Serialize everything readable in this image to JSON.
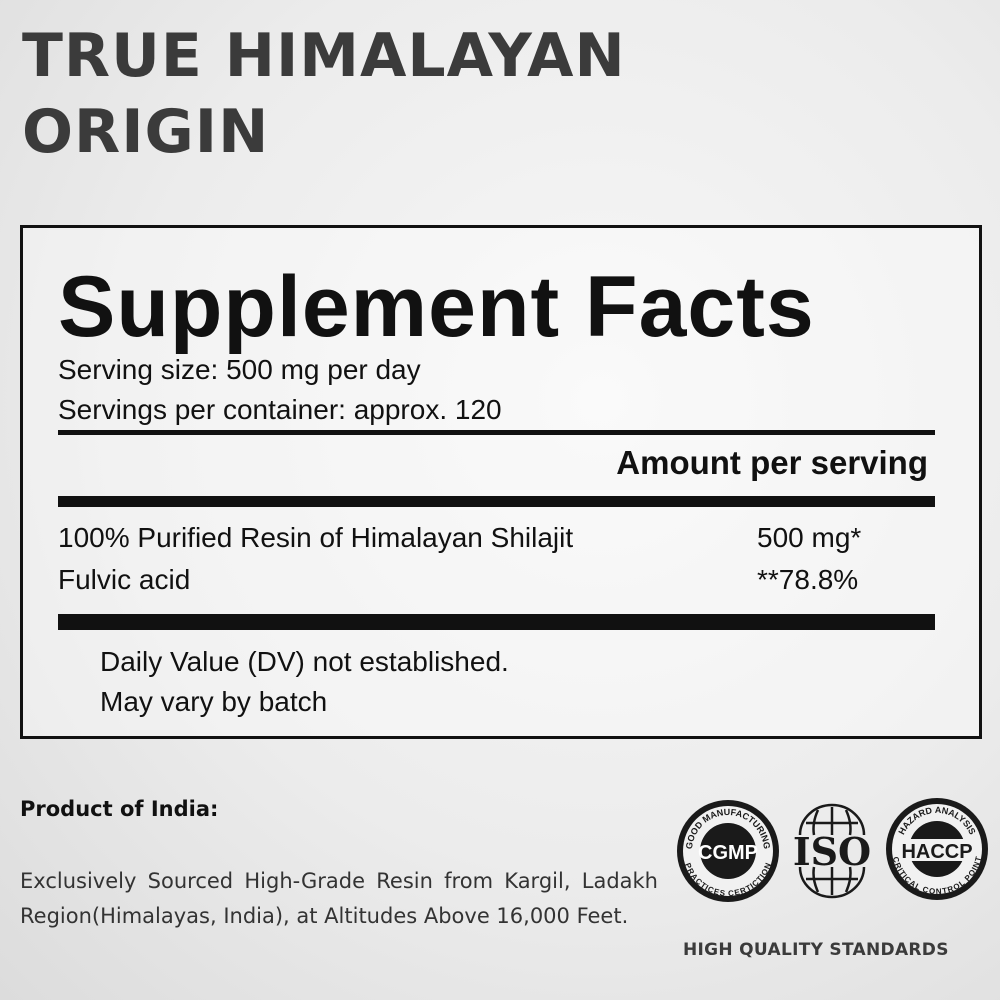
{
  "headline": {
    "line1": "TRUE HIMALAYAN",
    "line2": "ORIGIN"
  },
  "facts": {
    "title": "Supplement Facts",
    "serving_size": "Serving size: 500 mg per day",
    "servings_per_container": "Servings per container: approx. 120",
    "amount_header": "Amount per serving",
    "rows": [
      {
        "name": "100% Purified Resin of Himalayan Shilajit",
        "amount": "500 mg*"
      },
      {
        "name": "Fulvic acid",
        "amount": "**78.8%"
      }
    ],
    "notes": [
      "Daily Value (DV) not established.",
      "May vary by batch"
    ]
  },
  "origin": {
    "heading": "Product of India:",
    "body": "Exclusively Sourced High-Grade Resin from Kargil, Ladakh Region(Himalayas, India), at Altitudes Above 16,000 Feet."
  },
  "badges": {
    "cgmp": {
      "center": "CGMP",
      "top": "GOOD MANUFACTURING",
      "bottom": "PRACTICES CERTICTION"
    },
    "iso": {
      "center": "ISO"
    },
    "haccp": {
      "center": "HACCP",
      "top": "HAZARD ANALYSIS",
      "bottom": "CRITICAL CONTROL POINT"
    },
    "caption": "HIGH QUALITY STANDARDS"
  }
}
